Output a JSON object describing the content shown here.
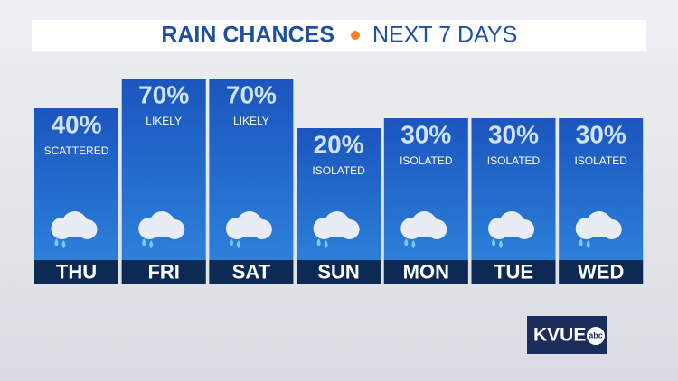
{
  "chart_data": {
    "type": "bar",
    "title": "RAIN CHANCES",
    "subtitle": "NEXT 7 DAYS",
    "categories": [
      "THU",
      "FRI",
      "SAT",
      "SUN",
      "MON",
      "TUE",
      "WED"
    ],
    "values": [
      40,
      70,
      70,
      20,
      30,
      30,
      30
    ],
    "value_labels": [
      "40%",
      "70%",
      "70%",
      "20%",
      "30%",
      "30%",
      "30%"
    ],
    "descriptions": [
      "SCATTERED",
      "LIKELY",
      "LIKELY",
      "ISOLATED",
      "ISOLATED",
      "ISOLATED",
      "ISOLATED"
    ],
    "color": "#1f63c9"
  },
  "logo": {
    "name": "KVUE",
    "network": "abc"
  }
}
